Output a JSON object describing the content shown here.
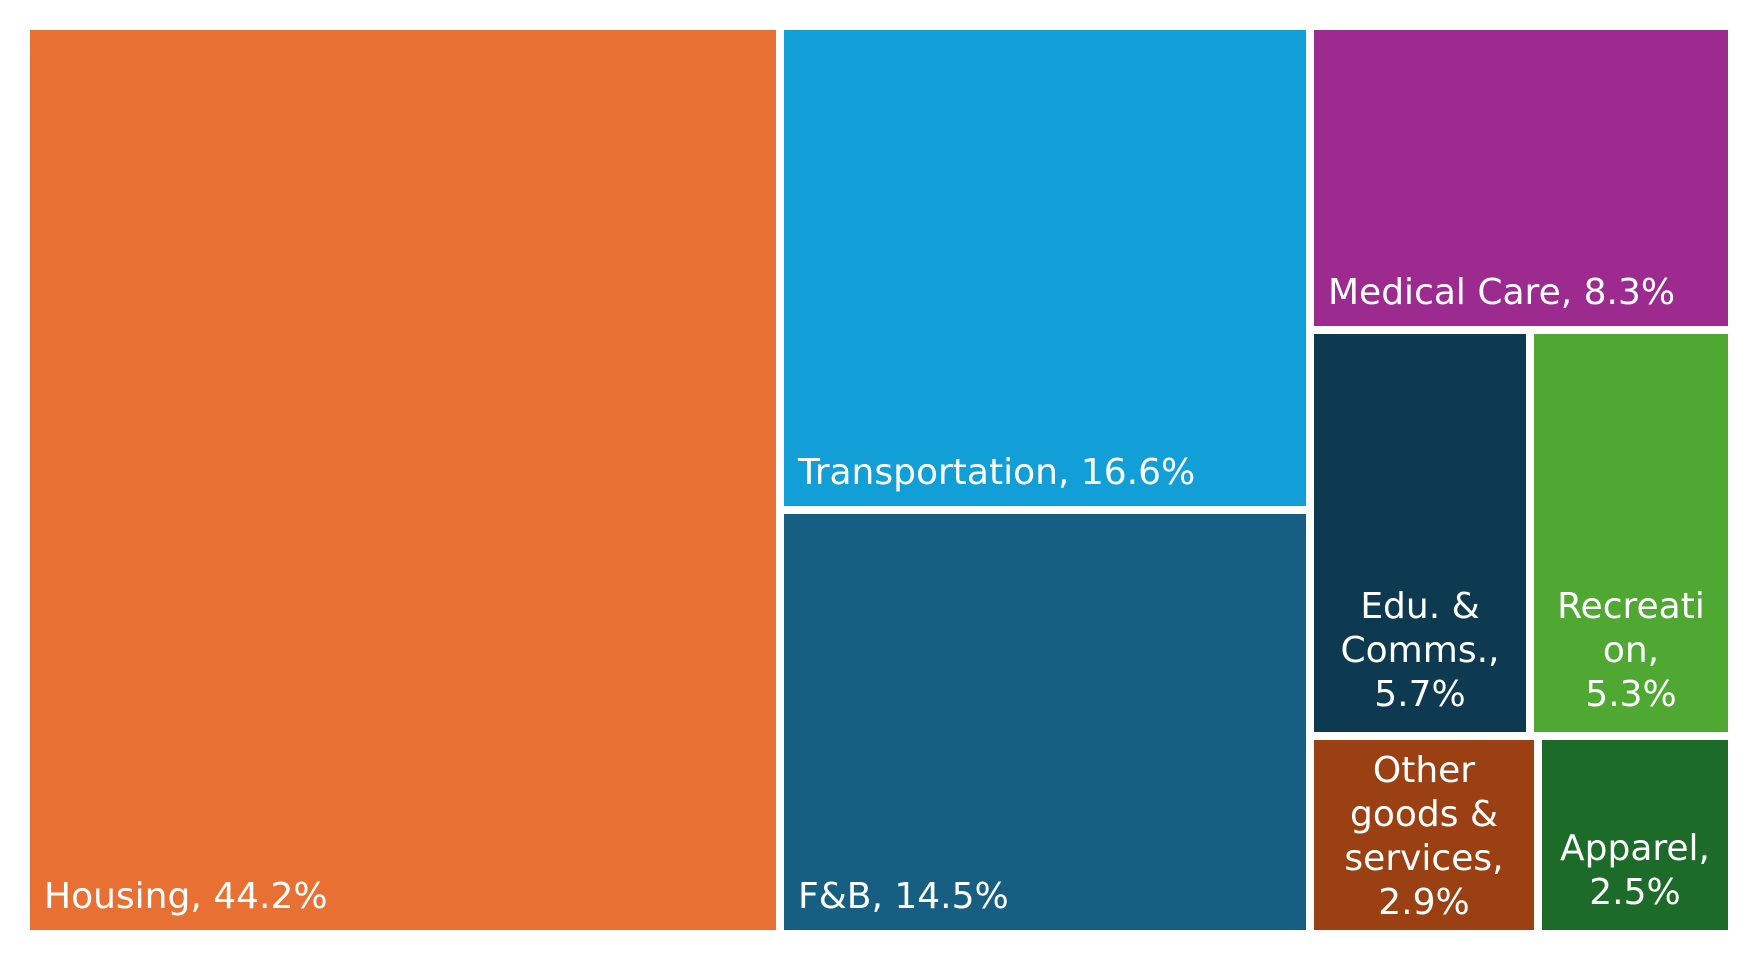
{
  "chart_data": {
    "type": "treemap",
    "items": [
      {
        "name": "Housing",
        "value": 44.2,
        "label": "Housing, 44.2%",
        "color": "#E87033"
      },
      {
        "name": "Transportation",
        "value": 16.6,
        "label": "Transportation, 16.6%",
        "color": "#129ED7"
      },
      {
        "name": "F&B",
        "value": 14.5,
        "label": "F&B, 14.5%",
        "color": "#175F82"
      },
      {
        "name": "Medical Care",
        "value": 8.3,
        "label": "Medical Care, 8.3%",
        "color": "#9D2A8F"
      },
      {
        "name": "Edu. & Comms.",
        "value": 5.7,
        "label": "Edu. & Comms., 5.7%",
        "color": "#0E3A51"
      },
      {
        "name": "Recreation",
        "value": 5.3,
        "label": "Recreation, 5.3%",
        "color": "#4FA832"
      },
      {
        "name": "Other goods & services",
        "value": 2.9,
        "label": "Other goods & services, 2.9%",
        "color": "#9A4012"
      },
      {
        "name": "Apparel",
        "value": 2.5,
        "label": "Apparel, 2.5%",
        "color": "#1C6B28"
      }
    ]
  }
}
